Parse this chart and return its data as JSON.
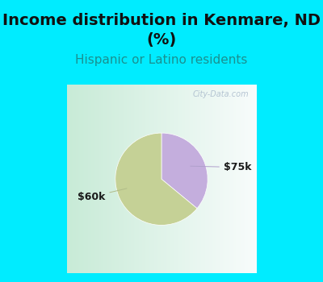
{
  "title_line1": "Income distribution in Kenmare, ND",
  "title_line2": "(%)",
  "subtitle": "Hispanic or Latino residents",
  "slices": [
    0.64,
    0.36
  ],
  "slice_colors": [
    "#c5d196",
    "#c4aedd"
  ],
  "slice_labels": [
    "$60k",
    "$75k"
  ],
  "label_color": "#1a1a1a",
  "background_color": "#00ecff",
  "title_color": "#111111",
  "subtitle_color": "#1a9090",
  "watermark": "City-Data.com",
  "watermark_color": "#aabbcc",
  "title_fontsize": 14,
  "subtitle_fontsize": 11,
  "label_fontsize": 9
}
